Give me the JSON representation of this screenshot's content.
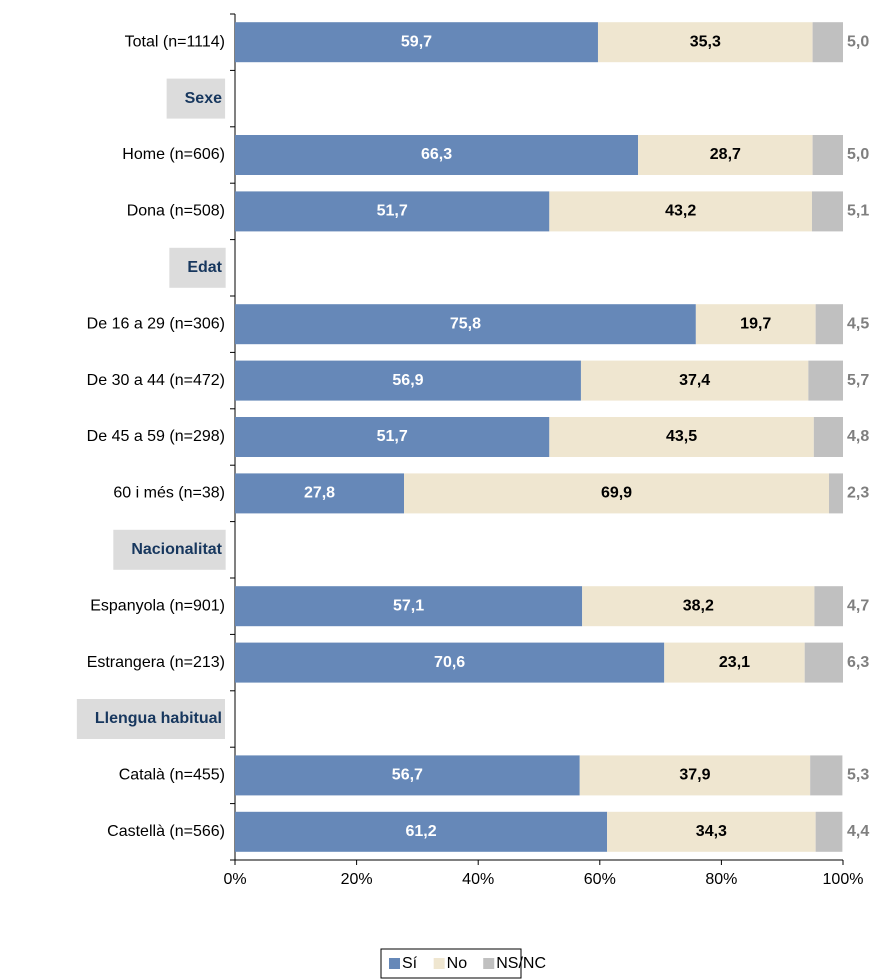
{
  "chart_data": {
    "type": "stacked_barh",
    "categories": [
      "Total (n=1114)",
      "Sexe",
      "Home (n=606)",
      "Dona (n=508)",
      "Edat",
      "De 16 a 29 (n=306)",
      "De 30 a 44 (n=472)",
      "De 45 a 59 (n=298)",
      "60 i més (n=38)",
      "Nacionalitat",
      "Espanyola (n=901)",
      "Estrangera (n=213)",
      "Llengua habitual",
      "Català (n=455)",
      "Castellà (n=566)"
    ],
    "series": [
      {
        "name": "Sí",
        "color": "#6688b8",
        "values": [
          59.7,
          null,
          66.3,
          51.7,
          null,
          75.8,
          56.9,
          51.7,
          27.8,
          null,
          57.1,
          70.6,
          null,
          56.7,
          61.2
        ],
        "value_labels": [
          "59,7",
          null,
          "66,3",
          "51,7",
          null,
          "75,8",
          "56,9",
          "51,7",
          "27,8",
          null,
          "57,1",
          "70,6",
          null,
          "56,7",
          "61,2"
        ]
      },
      {
        "name": "No",
        "color": "#efe6d0",
        "values": [
          35.3,
          null,
          28.7,
          43.2,
          null,
          19.7,
          37.4,
          43.5,
          69.9,
          null,
          38.2,
          23.1,
          null,
          37.9,
          34.3
        ],
        "value_labels": [
          "35,3",
          null,
          "28,7",
          "43,2",
          null,
          "19,7",
          "37,4",
          "43,5",
          "69,9",
          null,
          "38,2",
          "23,1",
          null,
          "37,9",
          "34,3"
        ]
      },
      {
        "name": "NS/NC",
        "color": "#c0c0c0",
        "values": [
          5.0,
          null,
          5.0,
          5.1,
          null,
          4.5,
          5.7,
          4.8,
          2.3,
          null,
          4.7,
          6.3,
          null,
          5.3,
          4.4
        ],
        "value_labels": [
          "5,0",
          null,
          "5,0",
          "5,1",
          null,
          "4,5",
          "5,7",
          "4,8",
          "2,3",
          null,
          "4,7",
          "6,3",
          null,
          "5,3",
          "4,4"
        ]
      }
    ],
    "xlim": [
      0,
      100
    ],
    "xticks": [
      {
        "value": 0,
        "label": "0%"
      },
      {
        "value": 20,
        "label": "20%"
      },
      {
        "value": 40,
        "label": "40%"
      },
      {
        "value": 60,
        "label": "60%"
      },
      {
        "value": 80,
        "label": "80%"
      },
      {
        "value": 100,
        "label": "100%"
      }
    ],
    "legend": "bottom"
  }
}
